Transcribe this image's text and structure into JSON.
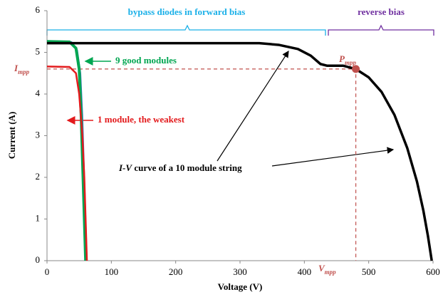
{
  "chart_data": {
    "type": "line",
    "xlabel": "Voltage (V)",
    "ylabel": "Current (A)",
    "xlim": [
      0,
      600
    ],
    "xticks": [
      0,
      100,
      200,
      300,
      400,
      500,
      600
    ],
    "ylim": [
      0,
      6
    ],
    "yticks": [
      0,
      1,
      2,
      3,
      4,
      5,
      6
    ],
    "series": [
      {
        "color": "#4472c4",
        "x": [
          0,
          38,
          47,
          52,
          55,
          58,
          60,
          62
        ],
        "values": [
          5.26,
          5.25,
          5.05,
          4.5,
          3.5,
          2.0,
          1.0,
          0
        ]
      },
      {
        "color": "#00a651",
        "x": [
          0,
          35,
          45,
          50,
          53,
          56,
          58,
          60
        ],
        "values": [
          5.26,
          5.25,
          5.1,
          4.6,
          3.5,
          2.0,
          1.0,
          0
        ]
      },
      {
        "color": "#e31a1c",
        "x": [
          0,
          35,
          45,
          50,
          55,
          58,
          60,
          62
        ],
        "values": [
          4.66,
          4.65,
          4.5,
          4.0,
          3.0,
          2.0,
          1.0,
          0
        ]
      },
      {
        "color": "#000000",
        "x": [
          0,
          330,
          360,
          390,
          410,
          425,
          435,
          460,
          480,
          500,
          520,
          540,
          560,
          575,
          585,
          592,
          598
        ],
        "values": [
          5.22,
          5.22,
          5.18,
          5.08,
          4.92,
          4.72,
          4.68,
          4.68,
          4.6,
          4.4,
          4.05,
          3.5,
          2.7,
          1.9,
          1.2,
          0.6,
          0
        ]
      }
    ],
    "mpp": {
      "x": 480,
      "y": 4.6,
      "color": "#c0504d"
    },
    "annotations": {
      "forward": "bypass diodes in forward bias",
      "reverse": "reverse bias",
      "good": "9 good modules",
      "weak": "1 module, the weakest",
      "string_italic": "I-V",
      "string_rest": " curve of a 10 module string",
      "impp": {
        "symbol": "I",
        "subscript": "mpp"
      },
      "pmpp": {
        "symbol": "P",
        "subscript": "mpp"
      },
      "vmpp": {
        "symbol": "V",
        "subscript": "mpp"
      }
    }
  }
}
